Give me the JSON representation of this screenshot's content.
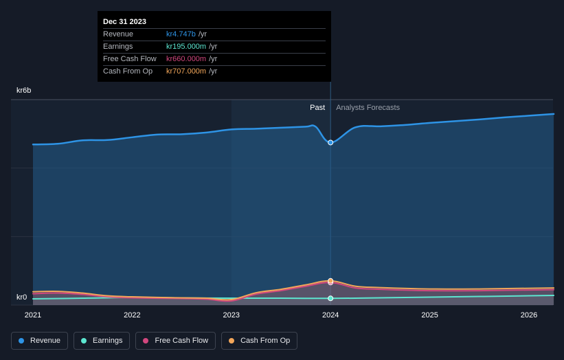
{
  "chart_data": {
    "type": "area",
    "y_axis": {
      "unit_prefix": "kr",
      "top_label": "kr6b",
      "bottom_label": "kr0",
      "ylim": [
        0,
        6.0
      ]
    },
    "x_axis": {
      "tick_labels": [
        "2021",
        "2022",
        "2023",
        "2024",
        "2025",
        "2026"
      ],
      "tick_values": [
        2021,
        2022,
        2023,
        2024,
        2025,
        2026
      ],
      "xlim": [
        2021.0,
        2026.25
      ]
    },
    "regions": {
      "past_label": "Past",
      "forecast_label": "Analysts Forecasts",
      "highlight_start": 2023.0,
      "divider": 2024.0
    },
    "series": [
      {
        "name": "Revenue",
        "color": "#2e94e6",
        "x": [
          2021.0,
          2021.25,
          2021.5,
          2021.75,
          2022.0,
          2022.25,
          2022.5,
          2022.75,
          2023.0,
          2023.25,
          2023.5,
          2023.75,
          2023.85,
          2024.0,
          2024.25,
          2024.5,
          2024.75,
          2025.0,
          2025.25,
          2025.5,
          2025.75,
          2026.0,
          2026.25
        ],
        "values": [
          4.69,
          4.71,
          4.81,
          4.82,
          4.9,
          4.98,
          4.99,
          5.04,
          5.13,
          5.15,
          5.18,
          5.21,
          5.21,
          4.747,
          5.19,
          5.22,
          5.26,
          5.32,
          5.37,
          5.42,
          5.48,
          5.53,
          5.58
        ]
      },
      {
        "name": "Earnings",
        "color": "#5ce6d0",
        "x": [
          2021.0,
          2021.5,
          2022.0,
          2022.5,
          2023.0,
          2023.5,
          2024.0,
          2024.5,
          2025.0,
          2025.5,
          2026.0,
          2026.25
        ],
        "values": [
          0.18,
          0.2,
          0.22,
          0.21,
          0.2,
          0.2,
          0.195,
          0.21,
          0.23,
          0.25,
          0.27,
          0.28
        ]
      },
      {
        "name": "Free Cash Flow",
        "color": "#d1477e",
        "x": [
          2021.0,
          2021.25,
          2021.5,
          2021.75,
          2022.0,
          2022.5,
          2022.75,
          2023.0,
          2023.25,
          2023.5,
          2023.75,
          2024.0,
          2024.25,
          2024.5,
          2025.0,
          2025.5,
          2026.0,
          2026.25
        ],
        "values": [
          0.33,
          0.35,
          0.31,
          0.24,
          0.21,
          0.19,
          0.17,
          0.12,
          0.32,
          0.42,
          0.55,
          0.66,
          0.5,
          0.46,
          0.42,
          0.42,
          0.44,
          0.45
        ]
      },
      {
        "name": "Cash From Op",
        "color": "#f2a65a",
        "x": [
          2021.0,
          2021.25,
          2021.5,
          2021.75,
          2022.0,
          2022.5,
          2022.75,
          2023.0,
          2023.25,
          2023.5,
          2023.75,
          2024.0,
          2024.25,
          2024.5,
          2025.0,
          2025.5,
          2026.0,
          2026.25
        ],
        "values": [
          0.39,
          0.4,
          0.35,
          0.27,
          0.24,
          0.21,
          0.2,
          0.16,
          0.36,
          0.46,
          0.59,
          0.707,
          0.55,
          0.51,
          0.47,
          0.47,
          0.49,
          0.5
        ]
      }
    ]
  },
  "tooltip": {
    "date": "Dec 31 2023",
    "rows": [
      {
        "name": "Revenue",
        "value": "kr4.747b",
        "unit": "/yr",
        "color": "#2e94e6"
      },
      {
        "name": "Earnings",
        "value": "kr195.000m",
        "unit": "/yr",
        "color": "#5ce6d0"
      },
      {
        "name": "Free Cash Flow",
        "value": "kr660.000m",
        "unit": "/yr",
        "color": "#d1477e"
      },
      {
        "name": "Cash From Op",
        "value": "kr707.000m",
        "unit": "/yr",
        "color": "#f2a65a"
      }
    ]
  },
  "legend": [
    {
      "label": "Revenue",
      "color": "#2e94e6"
    },
    {
      "label": "Earnings",
      "color": "#5ce6d0"
    },
    {
      "label": "Free Cash Flow",
      "color": "#d1477e"
    },
    {
      "label": "Cash From Op",
      "color": "#f2a65a"
    }
  ]
}
